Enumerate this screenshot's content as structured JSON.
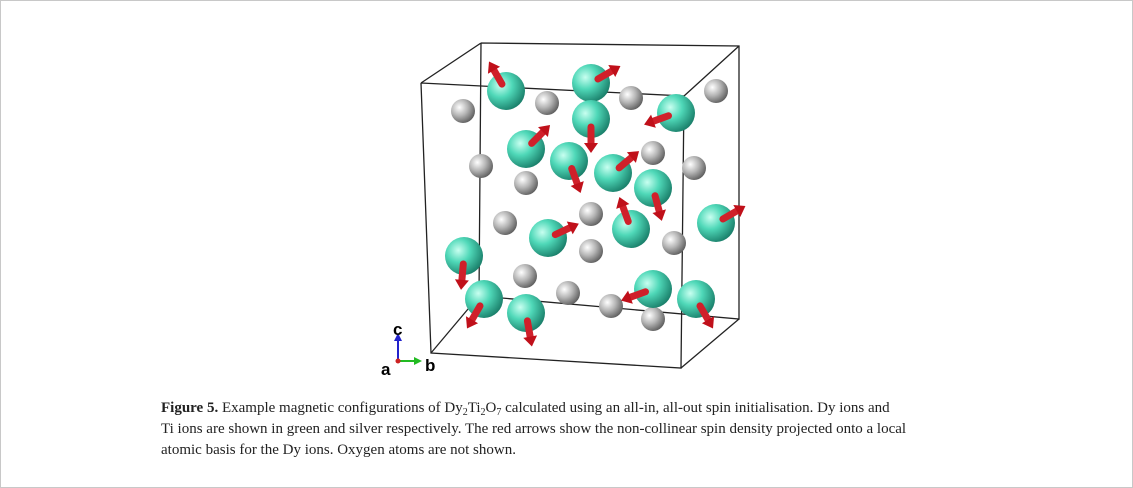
{
  "figure": {
    "axes_labels": {
      "c": "c",
      "a": "a",
      "b": "b"
    },
    "caption": {
      "label": "Figure 5.",
      "line1": [
        " Example magnetic configurations of Dy",
        "2",
        "Ti",
        "2",
        "O",
        "7",
        " calculated using an all-in, all-out spin initialisation. Dy ions and"
      ],
      "lines": [
        "Ti ions are shown in green and silver respectively. The red arrows show the non-collinear spin density projected onto a local",
        "atomic basis for the Dy ions. Oxygen atoms are not shown."
      ]
    }
  }
}
